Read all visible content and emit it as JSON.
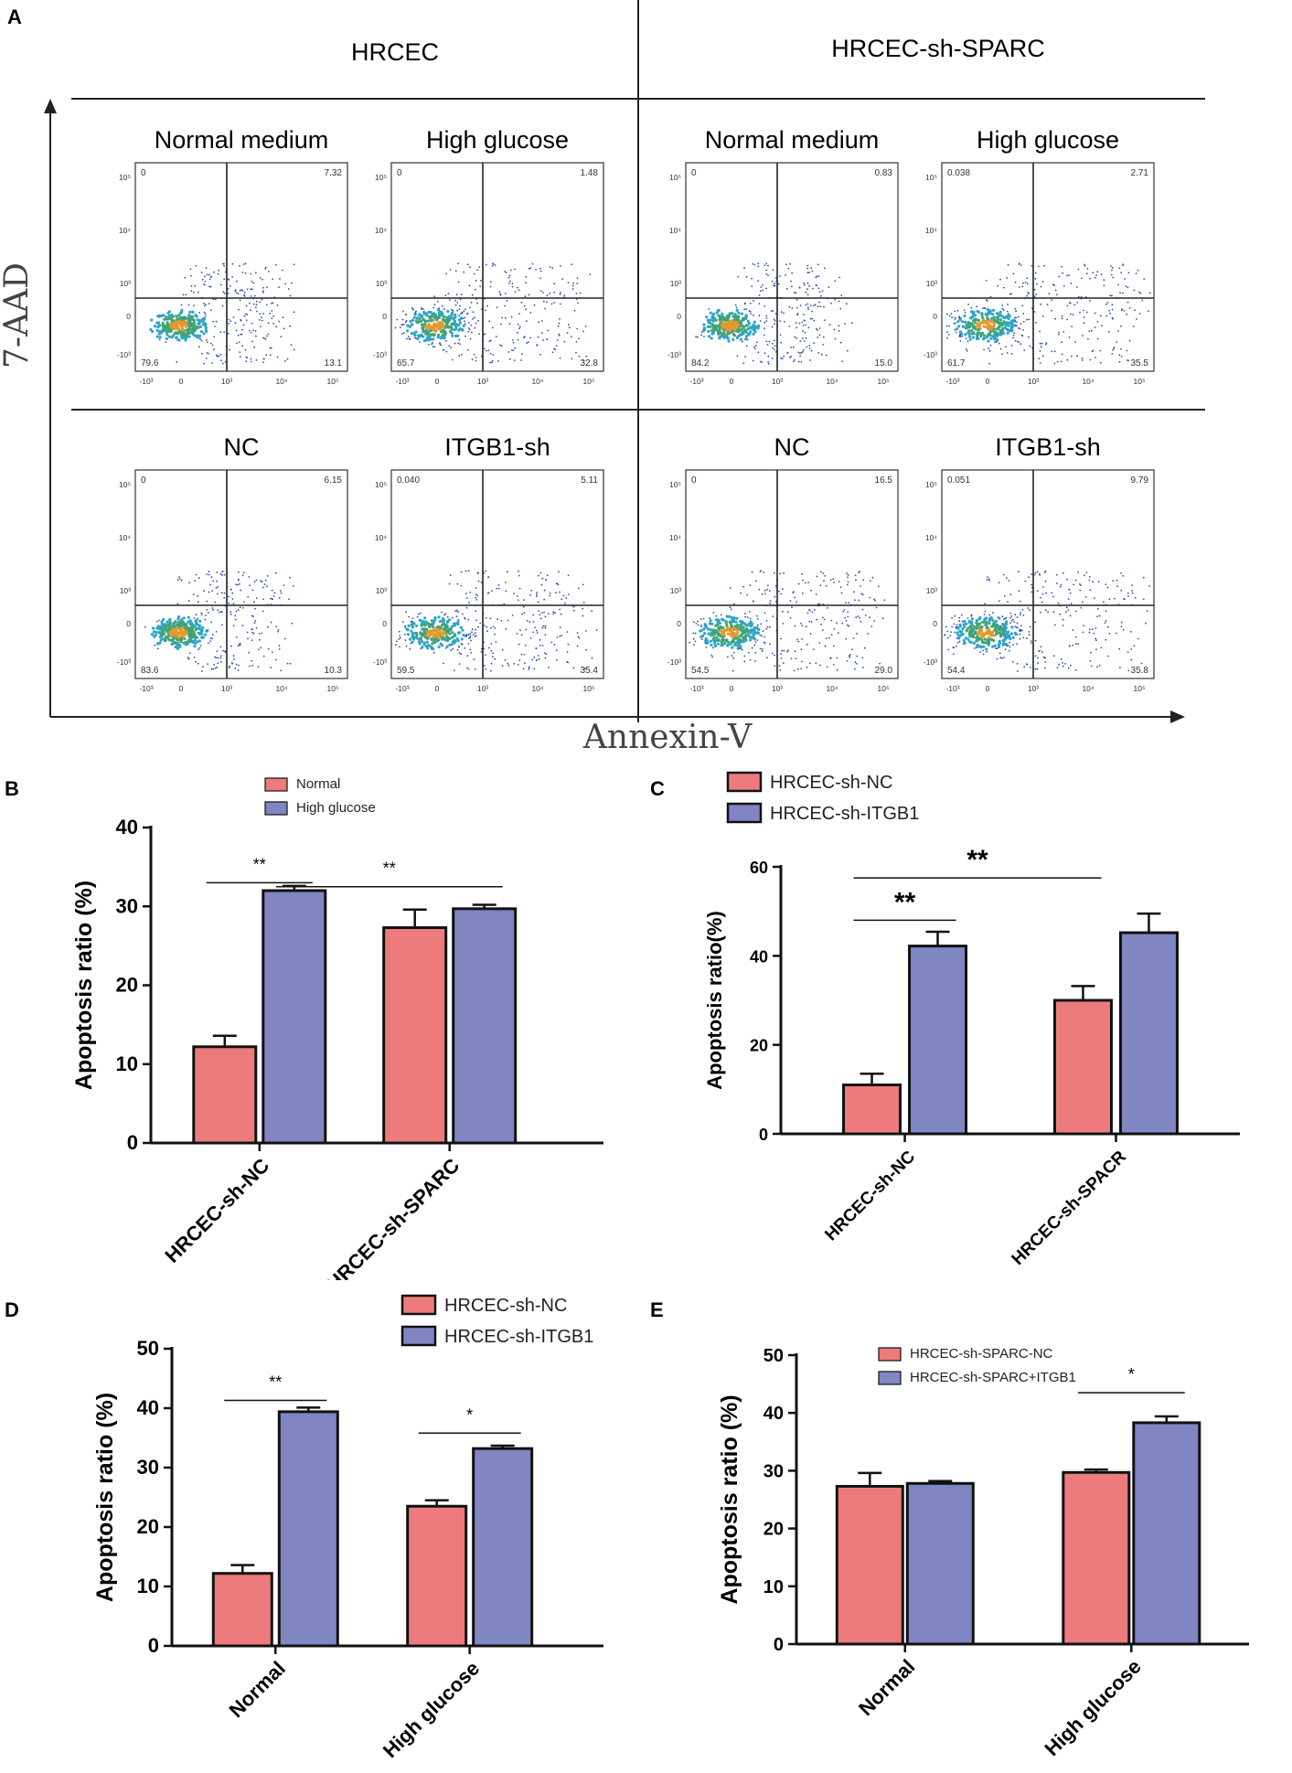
{
  "panel_a": {
    "letter": "A",
    "group_headers": [
      "HRCEC",
      "HRCEC-sh-SPARC"
    ],
    "x_axis_label": "Annexin-V",
    "y_axis_label": "7-AAD",
    "axis_ticks_x": [
      "-10³",
      "0",
      "10³",
      "10⁴",
      "10⁵"
    ],
    "axis_ticks_y": [
      "10⁵",
      "10⁴",
      "10³",
      "0",
      "-10³"
    ],
    "plots": [
      {
        "title": "Normal medium",
        "ul": "0",
        "ur": "7.32",
        "ll": "79.6",
        "lr": "13.1",
        "spread": 0.25
      },
      {
        "title": "High glucose",
        "ul": "0",
        "ur": "1.48",
        "ll": "65.7",
        "lr": "32.8",
        "spread": 0.7
      },
      {
        "title": "Normal medium",
        "ul": "0",
        "ur": "0.83",
        "ll": "84.2",
        "lr": "15.0",
        "spread": 0.3
      },
      {
        "title": "High glucose",
        "ul": "0.038",
        "ur": "2.71",
        "ll": "61.7",
        "lr": "35.5",
        "spread": 0.75
      },
      {
        "title": "NC",
        "ul": "0",
        "ur": "6.15",
        "ll": "83.6",
        "lr": "10.3",
        "spread": 0.25
      },
      {
        "title": "ITGB1-sh",
        "ul": "0.040",
        "ur": "5.11",
        "ll": "59.5",
        "lr": "35.4",
        "spread": 0.7
      },
      {
        "title": "NC",
        "ul": "0",
        "ur": "16.5",
        "ll": "54.5",
        "lr": "29.0",
        "spread": 0.65
      },
      {
        "title": "ITGB1-sh",
        "ul": "0.051",
        "ur": "9.79",
        "ll": "54.4",
        "lr": "35.8",
        "spread": 0.75
      }
    ]
  },
  "colors": {
    "red": "#EE7B7B",
    "blue": "#7F86C2",
    "axis": "#222222"
  },
  "chart_data": [
    {
      "panel": "B",
      "type": "bar",
      "categories": [
        "HRCEC-sh-NC",
        "HRCEC-sh-SPARC"
      ],
      "series": [
        {
          "name": "Normal",
          "values": [
            12.2,
            27.3
          ],
          "errors": [
            1.4,
            2.3
          ]
        },
        {
          "name": "High glucose",
          "values": [
            32.0,
            29.7
          ],
          "errors": [
            0.6,
            0.5
          ]
        }
      ],
      "ylabel": "Apoptosis ratio (%)",
      "ylim": [
        0,
        40
      ],
      "yticks": [
        0,
        10,
        20,
        30,
        40
      ],
      "annotations": [
        {
          "text": "**",
          "from": [
            0,
            0
          ],
          "to": [
            0,
            1
          ],
          "y": 33.0
        },
        {
          "text": "**",
          "from": [
            0,
            1
          ],
          "to": [
            1,
            1
          ],
          "y": 32.5
        }
      ]
    },
    {
      "panel": "C",
      "type": "bar",
      "categories": [
        "HRCEC-sh-NC",
        "HRCEC-sh-SPACR"
      ],
      "series": [
        {
          "name": "HRCEC-sh-NC",
          "values": [
            11.0,
            30.0
          ],
          "errors": [
            2.5,
            3.2
          ]
        },
        {
          "name": "HRCEC-sh-ITGB1",
          "values": [
            42.2,
            45.2
          ],
          "errors": [
            3.2,
            4.3
          ]
        }
      ],
      "ylabel": "Apoptosis ratio(%)",
      "ylim": [
        0,
        60
      ],
      "yticks": [
        0,
        20,
        40,
        60
      ],
      "annotations": [
        {
          "text": "**",
          "from": [
            0,
            0
          ],
          "to": [
            0,
            1
          ],
          "y": 48.0
        },
        {
          "text": "**",
          "from": [
            0,
            0
          ],
          "to": [
            1,
            0
          ],
          "y": 57.5
        }
      ]
    },
    {
      "panel": "D",
      "type": "bar",
      "categories": [
        "Normal",
        "High glucose"
      ],
      "series": [
        {
          "name": "HRCEC-sh-NC",
          "values": [
            12.2,
            23.5
          ],
          "errors": [
            1.4,
            1.0
          ]
        },
        {
          "name": "HRCEC-sh-ITGB1",
          "values": [
            39.4,
            33.2
          ],
          "errors": [
            0.7,
            0.5
          ]
        }
      ],
      "ylabel": "Apoptosis ratio (%)",
      "ylim": [
        0,
        50
      ],
      "yticks": [
        0,
        10,
        20,
        30,
        40,
        50
      ],
      "annotations": [
        {
          "text": "**",
          "from": [
            0,
            0
          ],
          "to": [
            0,
            1
          ],
          "y": 41.3
        },
        {
          "text": "*",
          "from": [
            1,
            0
          ],
          "to": [
            1,
            1
          ],
          "y": 35.8
        }
      ]
    },
    {
      "panel": "E",
      "type": "bar",
      "categories": [
        "Normal",
        "High glucose"
      ],
      "series": [
        {
          "name": "HRCEC-sh-SPARC-NC",
          "values": [
            27.3,
            29.7
          ],
          "errors": [
            2.3,
            0.5
          ]
        },
        {
          "name": "HRCEC-sh-SPARC+ITGB1",
          "values": [
            27.8,
            38.3
          ],
          "errors": [
            0.4,
            1.1
          ]
        }
      ],
      "ylabel": "Apoptosis ratio (%)",
      "ylim": [
        0,
        50
      ],
      "yticks": [
        0,
        10,
        20,
        30,
        40,
        50
      ],
      "annotations": [
        {
          "text": "*",
          "from": [
            1,
            0
          ],
          "to": [
            1,
            1
          ],
          "y": 43.5
        }
      ]
    }
  ]
}
